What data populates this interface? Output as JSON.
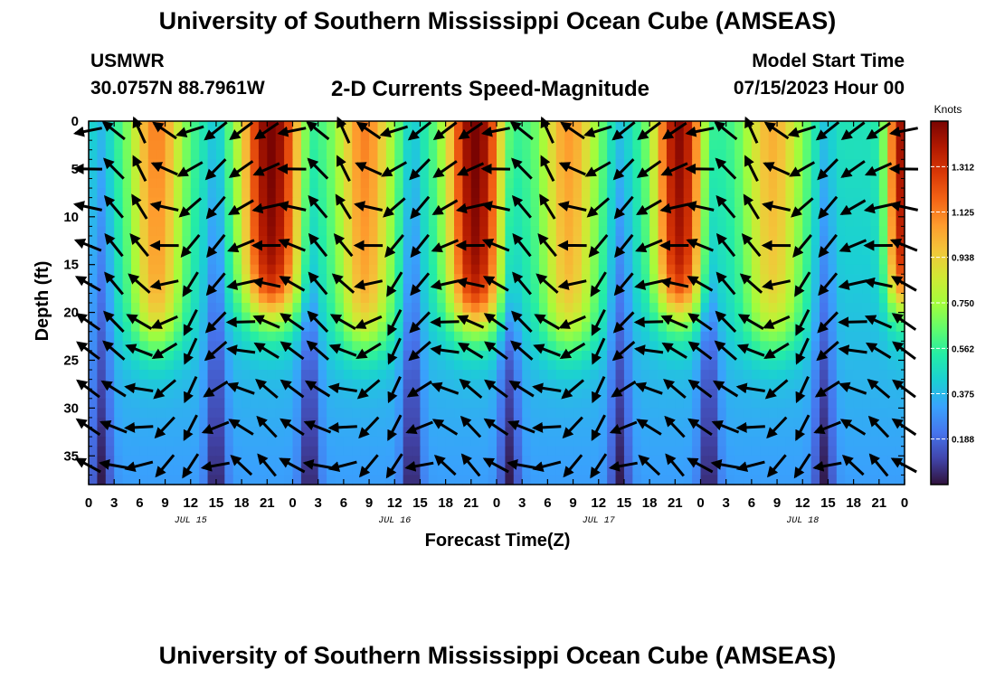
{
  "header": {
    "title_top": "University of Southern Mississippi Ocean Cube (AMSEAS)",
    "station": "USMWR",
    "coords": "30.0757N  88.7961W",
    "plot_title": "2-D Currents Speed-Magnitude",
    "model_start_label": "Model Start Time",
    "model_start_value": "07/15/2023 Hour 00",
    "title_bottom": "University of Southern Mississippi Ocean Cube (AMSEAS)"
  },
  "colors": {
    "colormap": [
      "#30123b",
      "#4145ab",
      "#4675ed",
      "#39a2fc",
      "#1bcfd4",
      "#24eca6",
      "#61fc6c",
      "#a4fc3b",
      "#d1e834",
      "#f3c63a",
      "#fe9b2d",
      "#f36315",
      "#d93806",
      "#b11901",
      "#7a0402"
    ],
    "arrow": "#000000",
    "axis": "#000000"
  },
  "chart_data": {
    "type": "heatmap",
    "title": "2-D Currents Speed-Magnitude",
    "xlabel": "Forecast Time(Z)",
    "ylabel": "Depth (ft)",
    "x_range_hours": [
      0,
      96
    ],
    "y_range_ft": [
      0,
      38
    ],
    "x_ticks": [
      {
        "h": 0,
        "label": "0"
      },
      {
        "h": 3,
        "label": "3"
      },
      {
        "h": 6,
        "label": "6"
      },
      {
        "h": 9,
        "label": "9"
      },
      {
        "h": 12,
        "label": "12"
      },
      {
        "h": 15,
        "label": "15"
      },
      {
        "h": 18,
        "label": "18"
      },
      {
        "h": 21,
        "label": "21"
      },
      {
        "h": 24,
        "label": "0"
      },
      {
        "h": 27,
        "label": "3"
      },
      {
        "h": 30,
        "label": "6"
      },
      {
        "h": 33,
        "label": "9"
      },
      {
        "h": 36,
        "label": "12"
      },
      {
        "h": 39,
        "label": "15"
      },
      {
        "h": 42,
        "label": "18"
      },
      {
        "h": 45,
        "label": "21"
      },
      {
        "h": 48,
        "label": "0"
      },
      {
        "h": 51,
        "label": "3"
      },
      {
        "h": 54,
        "label": "6"
      },
      {
        "h": 57,
        "label": "9"
      },
      {
        "h": 60,
        "label": "12"
      },
      {
        "h": 63,
        "label": "15"
      },
      {
        "h": 66,
        "label": "18"
      },
      {
        "h": 69,
        "label": "21"
      },
      {
        "h": 72,
        "label": "0"
      },
      {
        "h": 75,
        "label": "3"
      },
      {
        "h": 78,
        "label": "6"
      },
      {
        "h": 81,
        "label": "9"
      },
      {
        "h": 84,
        "label": "12"
      },
      {
        "h": 87,
        "label": "15"
      },
      {
        "h": 90,
        "label": "18"
      },
      {
        "h": 93,
        "label": "21"
      },
      {
        "h": 96,
        "label": "0"
      }
    ],
    "y_ticks": [
      0,
      5,
      10,
      15,
      20,
      25,
      30,
      35
    ],
    "day_labels": [
      {
        "h": 12,
        "label": "JUL 15"
      },
      {
        "h": 36,
        "label": "JUL 16"
      },
      {
        "h": 60,
        "label": "JUL 17"
      },
      {
        "h": 84,
        "label": "JUL 18"
      }
    ],
    "colorbar": {
      "unit": "Knots",
      "min": 0.0,
      "max": 1.5,
      "ticks": [
        0.188,
        0.375,
        0.562,
        0.75,
        0.938,
        1.125,
        1.312
      ],
      "tick_labels": [
        "0.188",
        "0.375",
        "0.562",
        "0.750",
        "0.938",
        "1.125",
        "1.312"
      ]
    },
    "high_speed_cores": [
      {
        "t_center_h": 8,
        "width_h": 3.2,
        "peak_kn": 1.05,
        "max_depth_ft": 23
      },
      {
        "t_center_h": 21.5,
        "width_h": 3.6,
        "peak_kn": 1.45,
        "max_depth_ft": 20
      },
      {
        "t_center_h": 32.5,
        "width_h": 3.4,
        "peak_kn": 1.05,
        "max_depth_ft": 23
      },
      {
        "t_center_h": 45.5,
        "width_h": 3.4,
        "peak_kn": 1.45,
        "max_depth_ft": 21
      },
      {
        "t_center_h": 56.5,
        "width_h": 3.4,
        "peak_kn": 1.0,
        "max_depth_ft": 23
      },
      {
        "t_center_h": 69.5,
        "width_h": 3.0,
        "peak_kn": 1.4,
        "max_depth_ft": 20
      },
      {
        "t_center_h": 80.5,
        "width_h": 3.6,
        "peak_kn": 0.95,
        "max_depth_ft": 23
      },
      {
        "t_center_h": 95.5,
        "width_h": 1.6,
        "peak_kn": 1.35,
        "max_depth_ft": 19
      }
    ],
    "background_speed_kn": 0.42,
    "slack_minima_h": [
      1.5,
      15,
      26,
      38,
      49.5,
      62.5,
      73,
      86.5
    ]
  }
}
